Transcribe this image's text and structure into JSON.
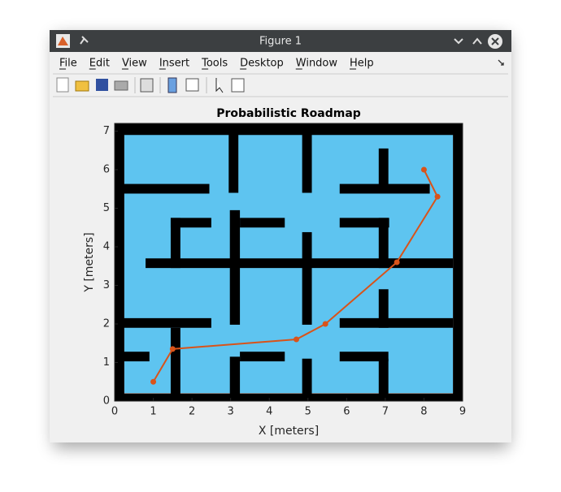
{
  "window": {
    "title": "Figure 1"
  },
  "menus": [
    "File",
    "Edit",
    "View",
    "Insert",
    "Tools",
    "Desktop",
    "Window",
    "Help"
  ],
  "chart_data": {
    "type": "line",
    "title": "Probabilistic Roadmap",
    "xlabel": "X [meters]",
    "ylabel": "Y [meters]",
    "xlim": [
      0,
      9
    ],
    "ylim": [
      0,
      7.2
    ],
    "xticks": [
      0,
      1,
      2,
      3,
      4,
      5,
      6,
      7,
      8,
      9
    ],
    "yticks": [
      0,
      1,
      2,
      3,
      4,
      5,
      6,
      7
    ],
    "x": [
      1,
      1.5,
      4.7,
      5.45,
      7.3,
      8.35,
      8
    ],
    "series": [
      {
        "color": "#d95319",
        "values": [
          0.5,
          1.35,
          1.6,
          2,
          3.6,
          5.3,
          6
        ]
      }
    ],
    "obstacle_color": "#000000",
    "obstacles": [
      [
        0,
        6.9,
        9,
        7.2
      ],
      [
        0,
        0,
        9,
        0.2
      ],
      [
        0,
        0,
        0.25,
        7.2
      ],
      [
        8.75,
        0,
        9,
        7.2
      ],
      [
        2.95,
        5.4,
        3.2,
        7.2
      ],
      [
        4.85,
        5.4,
        5.1,
        7.2
      ],
      [
        0,
        5.38,
        2.45,
        5.63
      ],
      [
        5.82,
        5.38,
        8.15,
        5.63
      ],
      [
        6.83,
        5.4,
        7.08,
        6.55
      ],
      [
        0.8,
        3.45,
        8.75,
        3.7
      ],
      [
        2.98,
        1.98,
        3.24,
        4.95
      ],
      [
        4.85,
        1.98,
        5.1,
        4.38
      ],
      [
        1.45,
        4.5,
        2.5,
        4.75
      ],
      [
        3.24,
        4.5,
        4.4,
        4.75
      ],
      [
        5.82,
        4.5,
        7.1,
        4.75
      ],
      [
        1.45,
        3.45,
        1.7,
        4.75
      ],
      [
        6.83,
        3.45,
        7.08,
        4.75
      ],
      [
        0,
        1.9,
        2.5,
        2.15
      ],
      [
        5.82,
        1.9,
        8.75,
        2.15
      ],
      [
        6.83,
        1.9,
        7.08,
        2.9
      ],
      [
        1.45,
        0,
        1.7,
        1.9
      ],
      [
        2.98,
        0,
        3.24,
        1.15
      ],
      [
        4.85,
        0,
        5.1,
        1.1
      ],
      [
        6.83,
        0,
        7.08,
        1.1
      ],
      [
        0,
        1.03,
        0.9,
        1.28
      ],
      [
        3.24,
        1.03,
        4.4,
        1.28
      ],
      [
        5.82,
        1.03,
        7.08,
        1.28
      ]
    ]
  }
}
